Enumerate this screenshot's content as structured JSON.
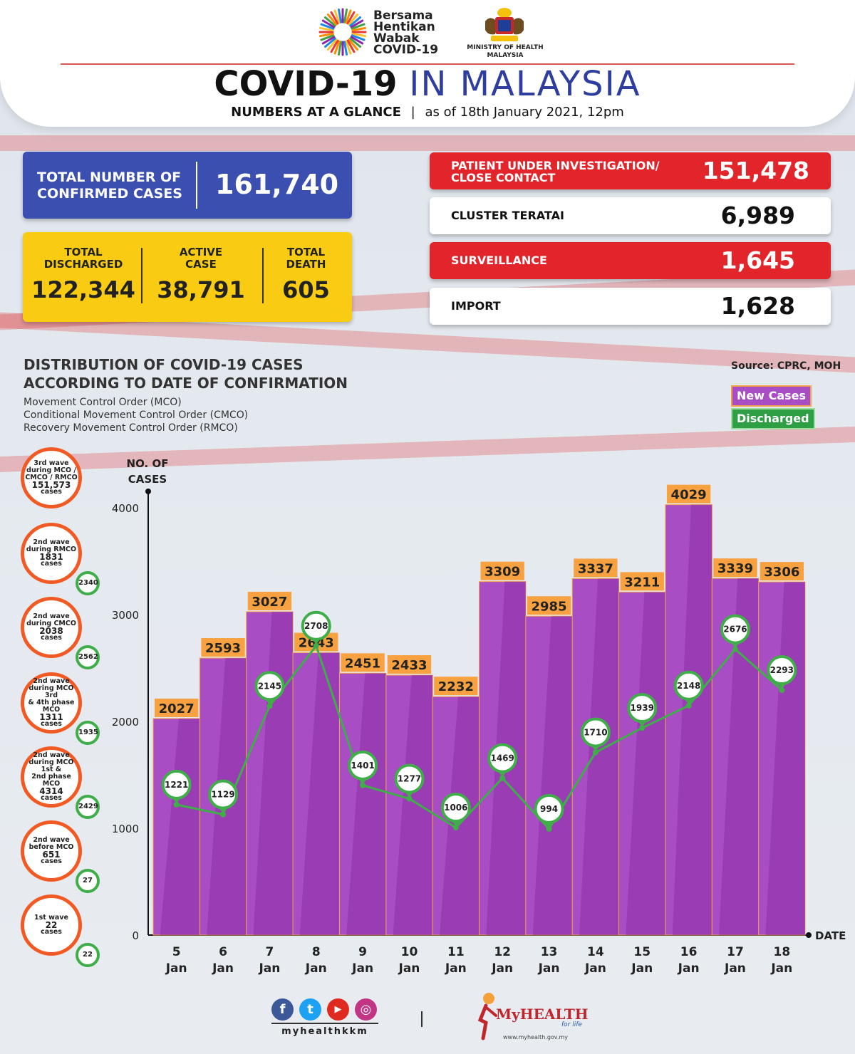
{
  "header": {
    "campaign": [
      "Bersama",
      "Hentikan",
      "Wabak",
      "COVID-19"
    ],
    "ministry": [
      "MINISTRY OF HEALTH",
      "MALAYSIA"
    ],
    "title_main": "COVID-19",
    "title_rest": "IN MALAYSIA",
    "subtitle_bold": "NUMBERS AT A GLANCE",
    "subtitle_date": "as of 18th January 2021, 12pm"
  },
  "summary": {
    "total_label_1": "TOTAL NUMBER OF",
    "total_label_2": "CONFIRMED CASES",
    "total_value": "161,740",
    "discharged_label_1": "TOTAL",
    "discharged_label_2": "DISCHARGED",
    "discharged_value": "122,344",
    "active_label_1": "ACTIVE",
    "active_label_2": "CASE",
    "active_value": "38,791",
    "death_label_1": "TOTAL",
    "death_label_2": "DEATH",
    "death_value": "605"
  },
  "categories": [
    {
      "label_1": "PATIENT UNDER INVESTIGATION/",
      "label_2": "CLOSE CONTACT",
      "value": "151,478",
      "color": "#e2252b"
    },
    {
      "label_1": "CLUSTER TERATAI",
      "label_2": "",
      "value": "6,989",
      "color": "#ffffff"
    },
    {
      "label_1": "SURVEILLANCE",
      "label_2": "",
      "value": "1,645",
      "color": "#e2252b"
    },
    {
      "label_1": "IMPORT",
      "label_2": "",
      "value": "1,628",
      "color": "#ffffff"
    }
  ],
  "distribution": {
    "title_1": "DISTRIBUTION OF COVID-19 CASES",
    "title_2": "ACCORDING TO DATE OF CONFIRMATION",
    "mco": [
      "Movement Control Order (MCO)",
      "Conditional Movement Control Order (CMCO)",
      "Recovery Movement Control Order (RMCO)"
    ],
    "source": "Source: CPRC, MOH",
    "legend_new": "New Cases",
    "legend_discharged": "Discharged"
  },
  "waves": [
    {
      "lines": [
        "3rd wave",
        "during MCO /",
        "CMCO / RMCO"
      ],
      "count": "151,573",
      "unit": "cases",
      "badge": ""
    },
    {
      "lines": [
        "2nd wave",
        "during RMCO"
      ],
      "count": "1831",
      "unit": "cases",
      "badge": "2340"
    },
    {
      "lines": [
        "2nd wave",
        "during CMCO"
      ],
      "count": "2038",
      "unit": "cases",
      "badge": "2562"
    },
    {
      "lines": [
        "2nd wave",
        "during MCO 3rd",
        "& 4th phase MCO"
      ],
      "count": "1311",
      "unit": "cases",
      "badge": "1935"
    },
    {
      "lines": [
        "2nd wave",
        "during MCO 1st &",
        "2nd phase MCO"
      ],
      "count": "4314",
      "unit": "cases",
      "badge": "2429"
    },
    {
      "lines": [
        "2nd wave",
        "before MCO"
      ],
      "count": "651",
      "unit": "cases",
      "badge": "27"
    },
    {
      "lines": [
        "1st wave"
      ],
      "count": "22",
      "unit": "cases",
      "badge": "22"
    }
  ],
  "chart_data": {
    "type": "bar",
    "ylabel": "NO. OF CASES",
    "xlabel": "DATE",
    "ylim": [
      0,
      4000
    ],
    "yticks": [
      0,
      1000,
      2000,
      3000,
      4000
    ],
    "categories": [
      "5 Jan",
      "6 Jan",
      "7 Jan",
      "8 Jan",
      "9 Jan",
      "10 Jan",
      "11 Jan",
      "12 Jan",
      "13 Jan",
      "14 Jan",
      "15 Jan",
      "16 Jan",
      "17 Jan",
      "18 Jan"
    ],
    "series": [
      {
        "name": "New Cases",
        "type": "bar",
        "color": "#a84dc4",
        "label_color": "#f7a140",
        "values": [
          2027,
          2593,
          3027,
          2643,
          2451,
          2433,
          2232,
          3309,
          2985,
          3337,
          3211,
          4029,
          3339,
          3306
        ]
      },
      {
        "name": "Discharged",
        "type": "line",
        "color": "#3fae49",
        "values": [
          1221,
          1129,
          2145,
          2708,
          1401,
          1277,
          1006,
          1469,
          994,
          1710,
          1939,
          2148,
          2676,
          2293
        ]
      }
    ]
  },
  "footer": {
    "social": [
      "f",
      "t",
      "▶",
      "◎"
    ],
    "handle": "myhealthkkm",
    "brand": "MyHEALTH",
    "tagline": "for life",
    "website": "www.myhealth.gov.my"
  }
}
